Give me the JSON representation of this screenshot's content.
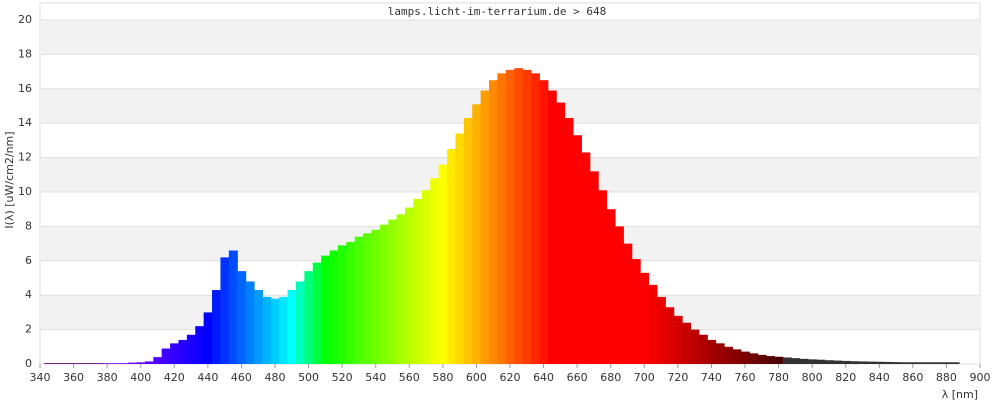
{
  "chart_data": {
    "type": "spectrum",
    "title": "lamps.licht-im-terrarium.de > 648",
    "x_label": "λ [nm]",
    "y_label": "I(λ)  [uW/cm2/nm]",
    "xlim": [
      340,
      900
    ],
    "xticks": [
      340,
      360,
      380,
      400,
      420,
      440,
      460,
      480,
      500,
      520,
      540,
      560,
      580,
      600,
      620,
      640,
      660,
      680,
      700,
      720,
      740,
      760,
      780,
      800,
      820,
      840,
      860,
      880,
      900
    ],
    "ylim": [
      0,
      20
    ],
    "yticks": [
      0,
      2,
      4,
      6,
      8,
      10,
      12,
      14,
      16,
      18,
      20
    ],
    "grid": true,
    "fill": "spectral",
    "x": [
      345,
      350,
      355,
      360,
      365,
      370,
      375,
      380,
      385,
      390,
      395,
      400,
      405,
      410,
      415,
      420,
      425,
      430,
      435,
      440,
      445,
      450,
      455,
      460,
      465,
      470,
      475,
      480,
      485,
      490,
      495,
      500,
      505,
      510,
      515,
      520,
      525,
      530,
      535,
      540,
      545,
      550,
      555,
      560,
      565,
      570,
      575,
      580,
      585,
      590,
      595,
      600,
      605,
      610,
      615,
      620,
      625,
      630,
      635,
      640,
      645,
      650,
      655,
      660,
      665,
      670,
      675,
      680,
      685,
      690,
      695,
      700,
      705,
      710,
      715,
      720,
      725,
      730,
      735,
      740,
      745,
      750,
      755,
      760,
      765,
      770,
      775,
      780,
      785,
      790,
      795,
      800,
      805,
      810,
      815,
      820,
      825,
      830,
      835,
      840,
      845,
      850,
      855,
      860,
      865,
      870,
      875,
      880,
      885
    ],
    "values": [
      0.05,
      0.05,
      0.05,
      0.05,
      0.05,
      0.05,
      0.05,
      0.05,
      0.05,
      0.05,
      0.08,
      0.1,
      0.15,
      0.4,
      0.9,
      1.2,
      1.4,
      1.7,
      2.2,
      3.0,
      4.3,
      6.2,
      6.6,
      5.4,
      4.8,
      4.3,
      3.9,
      3.8,
      3.9,
      4.3,
      4.8,
      5.4,
      5.9,
      6.3,
      6.6,
      6.9,
      7.1,
      7.4,
      7.6,
      7.8,
      8.1,
      8.4,
      8.7,
      9.1,
      9.6,
      10.1,
      10.8,
      11.6,
      12.5,
      13.4,
      14.3,
      15.1,
      15.9,
      16.5,
      16.9,
      17.1,
      17.2,
      17.1,
      16.9,
      16.5,
      15.9,
      15.2,
      14.3,
      13.3,
      12.3,
      11.2,
      10.1,
      9.0,
      8.0,
      7.0,
      6.1,
      5.3,
      4.6,
      3.9,
      3.3,
      2.8,
      2.4,
      2.0,
      1.7,
      1.4,
      1.2,
      1.0,
      0.85,
      0.72,
      0.62,
      0.53,
      0.46,
      0.42,
      0.38,
      0.34,
      0.3,
      0.27,
      0.25,
      0.22,
      0.2,
      0.18,
      0.16,
      0.15,
      0.14,
      0.13,
      0.12,
      0.11,
      0.1,
      0.1,
      0.1,
      0.1,
      0.1,
      0.1,
      0.1
    ]
  }
}
